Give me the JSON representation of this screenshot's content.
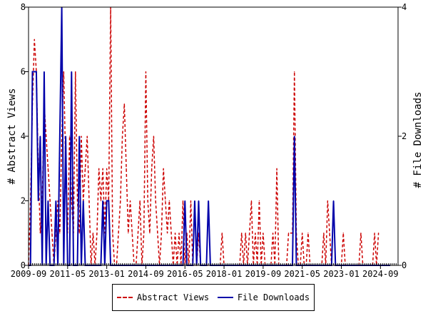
{
  "chart_data": {
    "type": "line",
    "title": "",
    "xlabel": "",
    "ylabel": "# Abstract Views",
    "y2label": "# File Downloads",
    "x_start": "2009-09",
    "x_end": "2025-06",
    "x_ticks": [
      "2009-09",
      "2011-05",
      "2013-01",
      "2014-09",
      "2016-05",
      "2018-01",
      "2019-09",
      "2021-05",
      "2023-01",
      "2024-09"
    ],
    "ylim": [
      0,
      8
    ],
    "y_ticks": [
      0,
      2,
      4,
      6,
      8
    ],
    "y2lim": [
      0,
      4
    ],
    "y2_ticks": [
      0,
      2,
      4
    ],
    "grid": false,
    "legend_position": "bottom",
    "series": [
      {
        "name": "Abstract Views",
        "axis": "left",
        "color": "#cc0000",
        "dash": "dashed",
        "values": [
          0,
          2,
          5,
          7,
          6,
          3,
          1,
          2,
          5,
          4,
          3,
          2,
          1,
          0,
          1,
          2,
          1,
          4,
          6,
          3,
          1,
          4,
          2,
          1,
          6,
          2,
          1,
          4,
          2,
          3,
          4,
          2,
          0,
          1,
          0,
          1,
          3,
          2,
          3,
          1,
          3,
          2,
          8,
          1,
          0,
          0,
          1,
          2,
          4,
          5,
          3,
          1,
          2,
          1,
          0,
          0,
          1,
          2,
          0,
          1,
          6,
          2,
          1,
          3,
          4,
          2,
          1,
          0,
          1,
          3,
          2,
          1,
          2,
          1,
          0,
          1,
          0,
          1,
          0,
          2,
          0,
          1,
          0,
          2,
          0,
          0,
          0,
          1,
          0,
          0,
          0,
          0,
          0,
          0,
          0,
          0,
          0,
          0,
          0,
          1,
          0,
          0,
          0,
          0,
          0,
          0,
          0,
          0,
          0,
          1,
          0,
          1,
          0,
          1,
          2,
          0,
          1,
          0,
          2,
          0,
          1,
          0,
          0,
          0,
          0,
          1,
          0,
          3,
          0,
          0,
          0,
          0,
          0,
          1,
          1,
          1,
          6,
          1,
          0,
          0,
          1,
          0,
          0,
          1,
          0,
          0,
          0,
          0,
          0,
          0,
          0,
          1,
          0,
          2,
          1,
          0,
          0,
          0,
          0,
          0,
          0,
          1,
          0,
          0,
          0,
          0,
          0,
          0,
          0,
          0,
          1,
          0,
          0,
          0,
          0,
          0,
          0,
          1,
          0,
          1
        ]
      },
      {
        "name": "File Downloads",
        "axis": "right",
        "color": "#0000aa",
        "dash": "solid",
        "values": [
          0,
          0,
          3,
          3,
          3,
          1,
          2,
          0,
          3,
          0,
          1,
          0,
          0,
          0,
          1,
          0,
          2,
          4,
          0,
          2,
          0,
          0,
          3,
          0,
          0,
          0,
          2,
          0,
          1,
          0,
          0,
          0,
          0,
          0,
          0,
          0,
          0,
          0,
          1,
          0,
          1,
          1,
          0,
          0,
          0,
          0,
          0,
          0,
          0,
          0,
          0,
          0,
          0,
          0,
          0,
          0,
          0,
          0,
          0,
          0,
          0,
          0,
          0,
          0,
          0,
          0,
          0,
          0,
          0,
          0,
          0,
          0,
          0,
          0,
          0,
          0,
          0,
          0,
          0,
          0,
          1,
          0,
          0,
          0,
          0,
          1,
          0,
          1,
          0,
          0,
          0,
          0,
          1,
          0,
          0,
          0,
          0,
          0,
          0,
          0,
          0,
          0,
          0,
          0,
          0,
          0,
          0,
          0,
          0,
          0,
          0,
          0,
          0,
          0,
          0,
          0,
          0,
          0,
          0,
          0,
          0,
          0,
          0,
          0,
          0,
          0,
          0,
          0,
          0,
          0,
          0,
          0,
          0,
          0,
          0,
          0,
          2,
          0,
          0,
          0,
          0,
          0,
          0,
          0,
          0,
          0,
          0,
          0,
          0,
          0,
          0,
          0,
          0,
          0,
          0,
          0,
          1,
          0,
          0,
          0,
          0,
          0,
          0,
          0,
          0,
          0,
          0,
          0,
          0,
          0,
          0,
          0,
          0,
          0,
          0,
          0,
          0,
          0,
          0,
          0,
          0,
          0,
          0,
          0,
          0,
          0
        ]
      }
    ]
  }
}
